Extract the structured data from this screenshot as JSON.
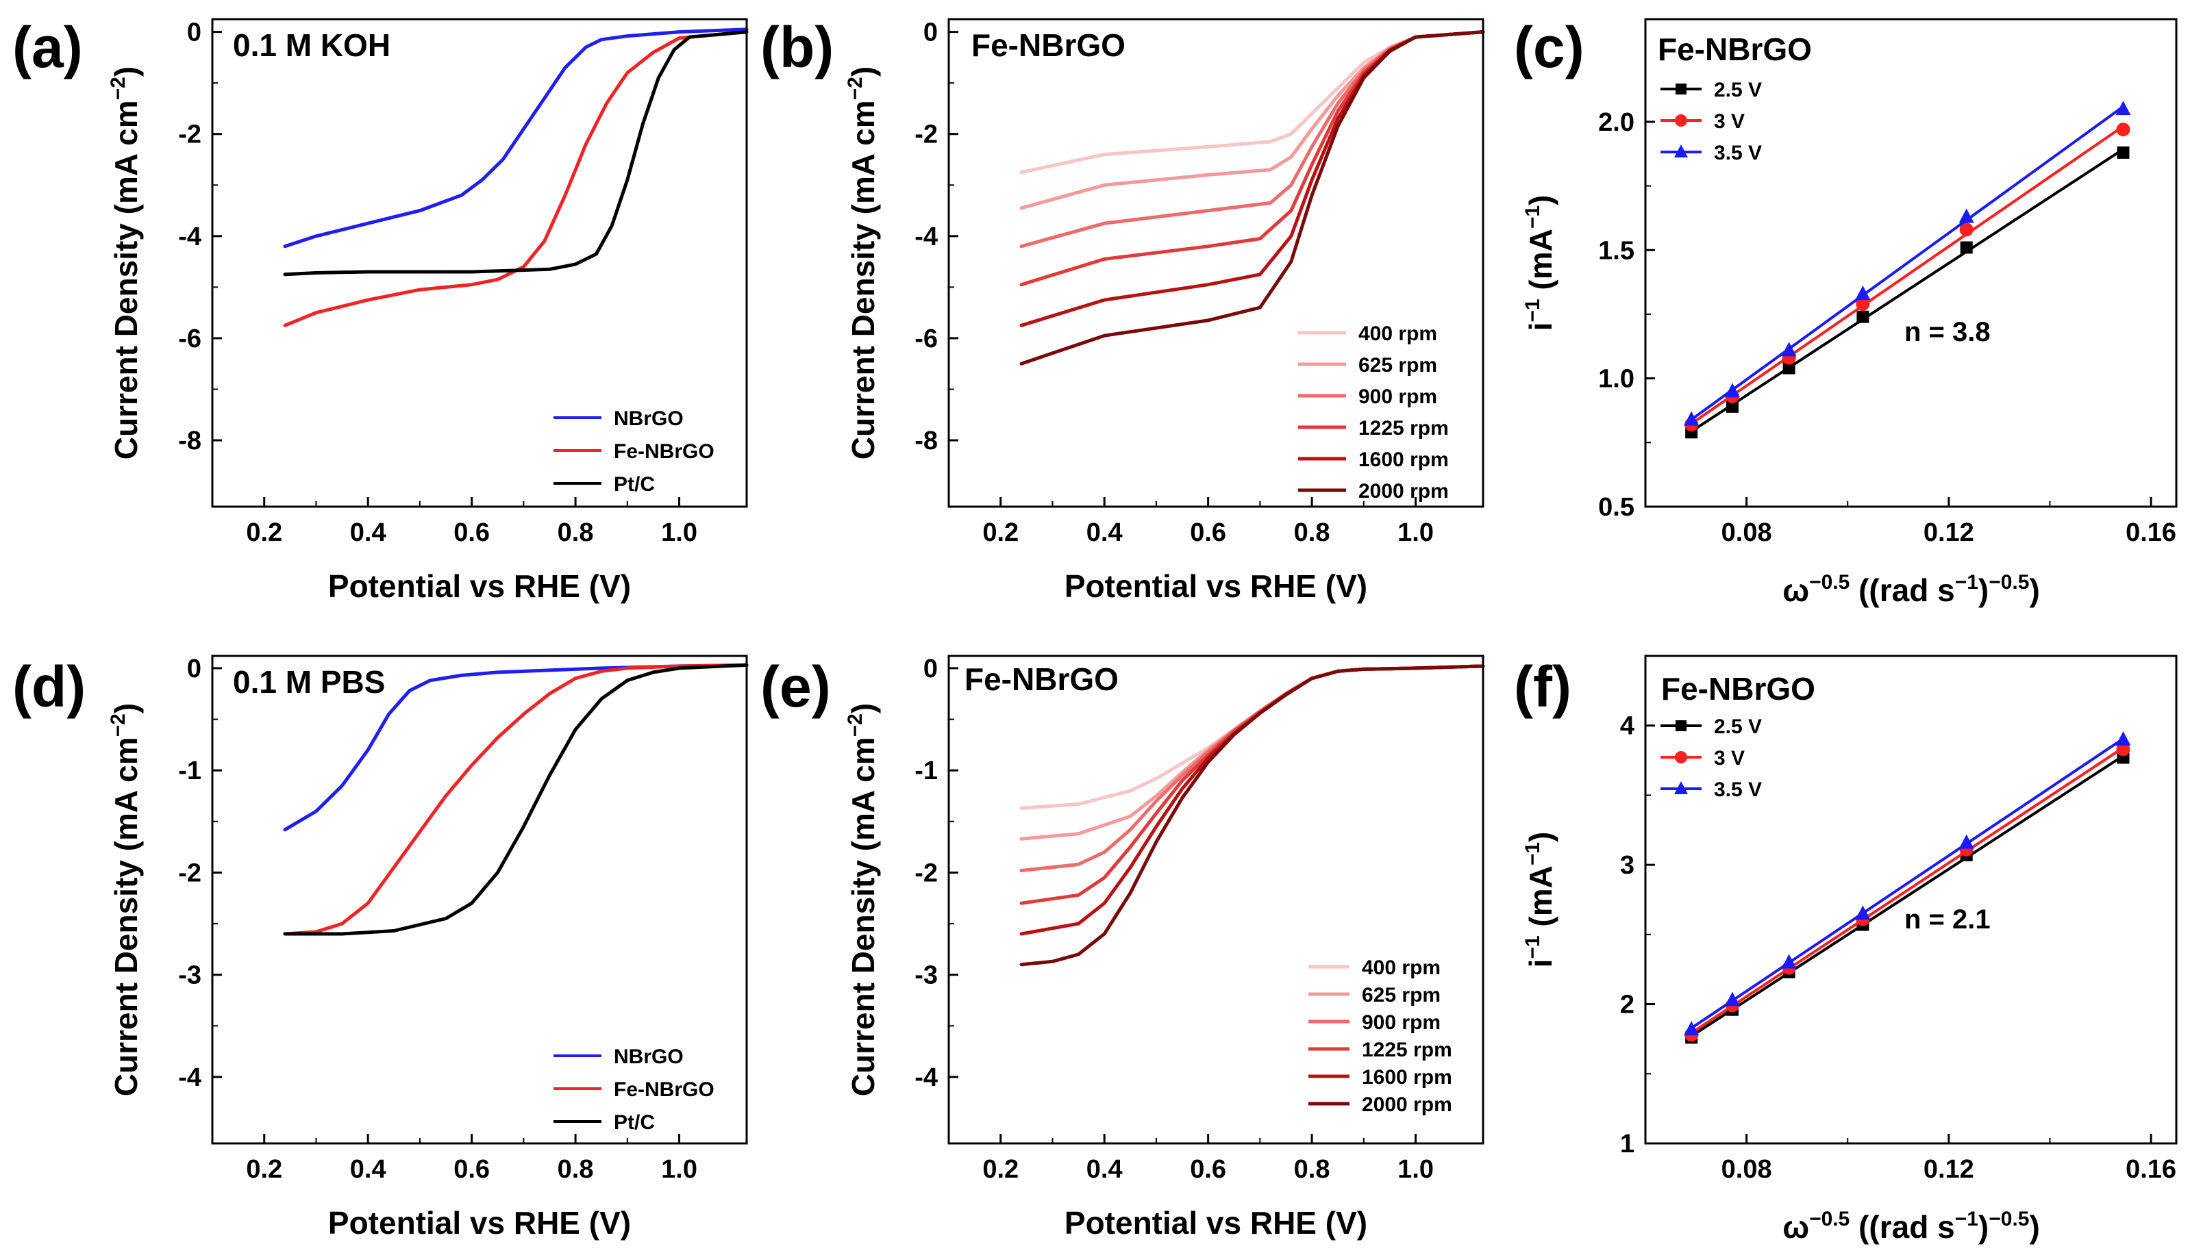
{
  "figure": {
    "panels": [
      {
        "label": "(a)",
        "title": "0.1 M KOH",
        "xlabel": "Potential vs RHE (V)",
        "ylabel": "Current Density (mA cm",
        "ylabel_sup": "−2",
        "ylabel_end": ")"
      },
      {
        "label": "(b)",
        "title": "Fe-NBrGO",
        "xlabel": "Potential vs RHE (V)",
        "ylabel": "Current Density (mA cm",
        "ylabel_sup": "−2",
        "ylabel_end": ")"
      },
      {
        "label": "(c)",
        "title": "Fe-NBrGO",
        "xlabel_pre": "ω",
        "xlabel_sup1": "−0.5",
        "xlabel_mid": " ((rad s",
        "xlabel_sup2": "−1",
        "xlabel_post": ")",
        "xlabel_sup3": "−0.5",
        "xlabel_end": ")",
        "ylabel": "i",
        "ylabel_sup": "−1",
        "ylabel_end": " (mA",
        "ylabel_sup2": "−1",
        "ylabel_end2": ")",
        "annotation": "n = 3.8"
      },
      {
        "label": "(d)",
        "title": "0.1 M PBS",
        "xlabel": "Potential vs RHE (V)",
        "ylabel": "Current Density (mA cm",
        "ylabel_sup": "−2",
        "ylabel_end": ")"
      },
      {
        "label": "(e)",
        "title": "Fe-NBrGO",
        "xlabel": "Potential vs RHE (V)",
        "ylabel": "Current Density (mA cm",
        "ylabel_sup": "−2",
        "ylabel_end": ")"
      },
      {
        "label": "(f)",
        "title": "Fe-NBrGO",
        "xlabel_pre": "ω",
        "xlabel_sup1": "−0.5",
        "xlabel_mid": " ((rad s",
        "xlabel_sup2": "−1",
        "xlabel_post": ")",
        "xlabel_sup3": "−0.5",
        "xlabel_end": ")",
        "ylabel": "i",
        "ylabel_sup": "−1",
        "ylabel_end": " (mA",
        "ylabel_sup2": "−1",
        "ylabel_end2": ")",
        "annotation": "n = 2.1"
      }
    ]
  },
  "chart_data": [
    {
      "panel": "a",
      "type": "line",
      "title": "0.1 M KOH",
      "xlabel": "Potential vs RHE (V)",
      "ylabel": "Current Density (mA cm−2)",
      "xlim": [
        0.1,
        1.13
      ],
      "ylim": [
        -9.3,
        0.25
      ],
      "xticks": [
        0.2,
        0.4,
        0.6,
        0.8,
        1.0
      ],
      "xtick_labels": [
        "0.2",
        "0.4",
        "0.6",
        "0.8",
        "1.0"
      ],
      "yticks": [
        0,
        -2,
        -4,
        -6,
        -8
      ],
      "ytick_labels": [
        "0",
        "-2",
        "-4",
        "-6",
        "-8"
      ],
      "legend_position": "bottom-right",
      "series": [
        {
          "name": "NBrGO",
          "color": "#1f1fef",
          "x": [
            0.24,
            0.3,
            0.4,
            0.5,
            0.58,
            0.62,
            0.66,
            0.7,
            0.74,
            0.78,
            0.82,
            0.85,
            0.9,
            1.0,
            1.13
          ],
          "y": [
            -4.2,
            -4.0,
            -3.75,
            -3.5,
            -3.2,
            -2.9,
            -2.5,
            -1.9,
            -1.3,
            -0.7,
            -0.3,
            -0.15,
            -0.08,
            0.0,
            0.05
          ]
        },
        {
          "name": "Fe-NBrGO",
          "color": "#ef2525",
          "x": [
            0.24,
            0.3,
            0.4,
            0.5,
            0.6,
            0.65,
            0.7,
            0.74,
            0.78,
            0.82,
            0.86,
            0.9,
            0.95,
            1.0,
            1.13
          ],
          "y": [
            -5.75,
            -5.5,
            -5.25,
            -5.05,
            -4.95,
            -4.85,
            -4.6,
            -4.1,
            -3.2,
            -2.2,
            -1.4,
            -0.8,
            -0.4,
            -0.12,
            0.0
          ]
        },
        {
          "name": "Pt/C",
          "color": "#000000",
          "x": [
            0.24,
            0.3,
            0.4,
            0.6,
            0.75,
            0.8,
            0.84,
            0.87,
            0.9,
            0.93,
            0.96,
            0.99,
            1.02,
            1.13
          ],
          "y": [
            -4.75,
            -4.72,
            -4.7,
            -4.7,
            -4.65,
            -4.55,
            -4.35,
            -3.8,
            -2.9,
            -1.8,
            -0.9,
            -0.35,
            -0.1,
            0.0
          ]
        }
      ]
    },
    {
      "panel": "b",
      "type": "line",
      "title": "Fe-NBrGO",
      "xlabel": "Potential vs RHE (V)",
      "ylabel": "Current Density (mA cm−2)",
      "xlim": [
        0.1,
        1.13
      ],
      "ylim": [
        -9.3,
        0.25
      ],
      "xticks": [
        0.2,
        0.4,
        0.6,
        0.8,
        1.0
      ],
      "xtick_labels": [
        "0.2",
        "0.4",
        "0.6",
        "0.8",
        "1.0"
      ],
      "yticks": [
        0,
        -2,
        -4,
        -6,
        -8
      ],
      "ytick_labels": [
        "0",
        "-2",
        "-4",
        "-6",
        "-8"
      ],
      "legend_position": "bottom-right",
      "series": [
        {
          "name": "400 rpm",
          "color": "#f7c5c5",
          "x": [
            0.24,
            0.4,
            0.6,
            0.72,
            0.76,
            0.8,
            0.85,
            0.9,
            0.95,
            1.0,
            1.13
          ],
          "y": [
            -2.75,
            -2.4,
            -2.25,
            -2.15,
            -2.0,
            -1.6,
            -1.1,
            -0.6,
            -0.3,
            -0.1,
            0.0
          ]
        },
        {
          "name": "625 rpm",
          "color": "#f39a9a",
          "x": [
            0.24,
            0.4,
            0.6,
            0.72,
            0.76,
            0.8,
            0.85,
            0.9,
            0.95,
            1.0,
            1.13
          ],
          "y": [
            -3.45,
            -3.0,
            -2.8,
            -2.7,
            -2.45,
            -1.9,
            -1.25,
            -0.7,
            -0.32,
            -0.1,
            0.0
          ]
        },
        {
          "name": "900 rpm",
          "color": "#ec6c6c",
          "x": [
            0.24,
            0.4,
            0.6,
            0.72,
            0.76,
            0.8,
            0.85,
            0.9,
            0.95,
            1.0,
            1.13
          ],
          "y": [
            -4.2,
            -3.75,
            -3.5,
            -3.35,
            -3.0,
            -2.25,
            -1.4,
            -0.75,
            -0.33,
            -0.1,
            0.0
          ]
        },
        {
          "name": "1225 rpm",
          "color": "#e03a3a",
          "x": [
            0.24,
            0.4,
            0.6,
            0.7,
            0.76,
            0.8,
            0.85,
            0.9,
            0.95,
            1.0,
            1.13
          ],
          "y": [
            -4.95,
            -4.45,
            -4.2,
            -4.05,
            -3.5,
            -2.6,
            -1.55,
            -0.8,
            -0.35,
            -0.1,
            0.0
          ]
        },
        {
          "name": "1600 rpm",
          "color": "#b81212",
          "x": [
            0.24,
            0.4,
            0.6,
            0.7,
            0.76,
            0.8,
            0.85,
            0.9,
            0.95,
            1.0,
            1.13
          ],
          "y": [
            -5.75,
            -5.25,
            -4.95,
            -4.75,
            -4.0,
            -2.9,
            -1.7,
            -0.85,
            -0.36,
            -0.1,
            0.0
          ]
        },
        {
          "name": "2000 rpm",
          "color": "#7a0a0a",
          "x": [
            0.24,
            0.4,
            0.6,
            0.7,
            0.76,
            0.8,
            0.85,
            0.9,
            0.95,
            1.0,
            1.13
          ],
          "y": [
            -6.5,
            -5.95,
            -5.65,
            -5.4,
            -4.5,
            -3.2,
            -1.85,
            -0.9,
            -0.38,
            -0.1,
            0.0
          ]
        }
      ]
    },
    {
      "panel": "c",
      "type": "scatter",
      "title": "Fe-NBrGO",
      "xlabel": "ω−0.5 ((rad s−1)−0.5)",
      "ylabel": "i−1 (mA−1)",
      "xlim": [
        0.06,
        0.165
      ],
      "ylim": [
        0.5,
        2.4
      ],
      "xticks": [
        0.08,
        0.12,
        0.16
      ],
      "xtick_labels": [
        "0.08",
        "0.12",
        "0.16"
      ],
      "yticks": [
        0.5,
        1.0,
        1.5,
        2.0
      ],
      "ytick_labels": [
        "0.5",
        "1.0",
        "1.5",
        "2.0"
      ],
      "legend_position": "top-left",
      "annotation": "n = 3.8",
      "x": [
        0.0691,
        0.0772,
        0.0884,
        0.103,
        0.1235,
        0.1545
      ],
      "series": [
        {
          "name": "2.5 V",
          "color": "#000000",
          "marker": "square",
          "values": [
            0.79,
            0.89,
            1.04,
            1.24,
            1.51,
            1.88
          ]
        },
        {
          "name": "3 V",
          "color": "#ff2020",
          "marker": "circle",
          "values": [
            0.82,
            0.93,
            1.08,
            1.29,
            1.58,
            1.97
          ]
        },
        {
          "name": "3.5 V",
          "color": "#1a1aff",
          "marker": "triangle",
          "values": [
            0.84,
            0.95,
            1.11,
            1.33,
            1.63,
            2.05
          ]
        }
      ]
    },
    {
      "panel": "d",
      "type": "line",
      "title": "0.1 M PBS",
      "xlabel": "Potential vs RHE (V)",
      "ylabel": "Current Density (mA cm−2)",
      "xlim": [
        0.1,
        1.13
      ],
      "ylim": [
        -4.65,
        0.12
      ],
      "xticks": [
        0.2,
        0.4,
        0.6,
        0.8,
        1.0
      ],
      "xtick_labels": [
        "0.2",
        "0.4",
        "0.6",
        "0.8",
        "1.0"
      ],
      "yticks": [
        0,
        -1,
        -2,
        -3,
        -4
      ],
      "ytick_labels": [
        "0",
        "-1",
        "-2",
        "-3",
        "-4"
      ],
      "legend_position": "bottom-right",
      "series": [
        {
          "name": "NBrGO",
          "color": "#1f1fef",
          "x": [
            0.24,
            0.3,
            0.35,
            0.4,
            0.44,
            0.48,
            0.52,
            0.58,
            0.65,
            0.75,
            0.85,
            1.0,
            1.13
          ],
          "y": [
            -1.58,
            -1.4,
            -1.15,
            -0.8,
            -0.45,
            -0.22,
            -0.12,
            -0.07,
            -0.04,
            -0.02,
            0.0,
            0.02,
            0.03
          ]
        },
        {
          "name": "Fe-NBrGO",
          "color": "#ef2525",
          "x": [
            0.24,
            0.3,
            0.35,
            0.4,
            0.45,
            0.5,
            0.55,
            0.6,
            0.65,
            0.7,
            0.75,
            0.8,
            0.85,
            0.9,
            1.0,
            1.13
          ],
          "y": [
            -2.6,
            -2.58,
            -2.5,
            -2.3,
            -1.95,
            -1.6,
            -1.25,
            -0.95,
            -0.68,
            -0.45,
            -0.25,
            -0.1,
            -0.03,
            0.0,
            0.02,
            0.03
          ]
        },
        {
          "name": "Pt/C",
          "color": "#000000",
          "x": [
            0.24,
            0.35,
            0.45,
            0.55,
            0.6,
            0.65,
            0.7,
            0.75,
            0.8,
            0.85,
            0.9,
            0.95,
            1.0,
            1.13
          ],
          "y": [
            -2.6,
            -2.6,
            -2.57,
            -2.45,
            -2.3,
            -2.0,
            -1.55,
            -1.05,
            -0.6,
            -0.3,
            -0.12,
            -0.04,
            0.0,
            0.03
          ]
        }
      ]
    },
    {
      "panel": "e",
      "type": "line",
      "title": "Fe-NBrGO",
      "xlabel": "Potential vs RHE (V)",
      "ylabel": "Current Density (mA cm−2)",
      "xlim": [
        0.1,
        1.13
      ],
      "ylim": [
        -4.65,
        0.12
      ],
      "xticks": [
        0.2,
        0.4,
        0.6,
        0.8,
        1.0
      ],
      "xtick_labels": [
        "0.2",
        "0.4",
        "0.6",
        "0.8",
        "1.0"
      ],
      "yticks": [
        0,
        -1,
        -2,
        -3,
        -4
      ],
      "ytick_labels": [
        "0",
        "-1",
        "-2",
        "-3",
        "-4"
      ],
      "legend_position": "bottom-right",
      "series": [
        {
          "name": "400 rpm",
          "color": "#f7c5c5",
          "x": [
            0.24,
            0.35,
            0.45,
            0.5,
            0.55,
            0.6,
            0.65,
            0.7,
            0.75,
            0.8,
            0.85,
            0.9,
            1.0,
            1.13
          ],
          "y": [
            -1.37,
            -1.33,
            -1.2,
            -1.08,
            -0.93,
            -0.78,
            -0.6,
            -0.42,
            -0.25,
            -0.1,
            -0.03,
            -0.01,
            0.0,
            0.02
          ]
        },
        {
          "name": "625 rpm",
          "color": "#f39a9a",
          "x": [
            0.24,
            0.35,
            0.45,
            0.5,
            0.55,
            0.6,
            0.65,
            0.7,
            0.75,
            0.8,
            0.85,
            0.9,
            1.0,
            1.13
          ],
          "y": [
            -1.67,
            -1.62,
            -1.45,
            -1.25,
            -1.02,
            -0.8,
            -0.6,
            -0.42,
            -0.25,
            -0.1,
            -0.03,
            -0.01,
            0.0,
            0.02
          ]
        },
        {
          "name": "900 rpm",
          "color": "#ec6c6c",
          "x": [
            0.24,
            0.35,
            0.4,
            0.45,
            0.5,
            0.55,
            0.6,
            0.65,
            0.7,
            0.75,
            0.8,
            0.85,
            0.9,
            1.0,
            1.13
          ],
          "y": [
            -1.98,
            -1.92,
            -1.8,
            -1.58,
            -1.3,
            -1.05,
            -0.82,
            -0.61,
            -0.42,
            -0.25,
            -0.1,
            -0.03,
            -0.01,
            0.0,
            0.02
          ]
        },
        {
          "name": "1225 rpm",
          "color": "#e03a3a",
          "x": [
            0.24,
            0.35,
            0.4,
            0.45,
            0.5,
            0.55,
            0.6,
            0.65,
            0.7,
            0.75,
            0.8,
            0.85,
            0.9,
            1.0,
            1.13
          ],
          "y": [
            -2.3,
            -2.22,
            -2.05,
            -1.75,
            -1.42,
            -1.1,
            -0.85,
            -0.62,
            -0.43,
            -0.25,
            -0.1,
            -0.03,
            -0.01,
            0.0,
            0.02
          ]
        },
        {
          "name": "1600 rpm",
          "color": "#b81212",
          "x": [
            0.24,
            0.35,
            0.4,
            0.45,
            0.5,
            0.55,
            0.6,
            0.65,
            0.7,
            0.75,
            0.8,
            0.85,
            0.9,
            1.0,
            1.13
          ],
          "y": [
            -2.6,
            -2.5,
            -2.3,
            -1.95,
            -1.55,
            -1.18,
            -0.88,
            -0.64,
            -0.44,
            -0.26,
            -0.1,
            -0.03,
            -0.01,
            0.0,
            0.02
          ]
        },
        {
          "name": "2000 rpm",
          "color": "#7a0a0a",
          "x": [
            0.24,
            0.3,
            0.35,
            0.4,
            0.45,
            0.5,
            0.55,
            0.6,
            0.65,
            0.7,
            0.75,
            0.8,
            0.85,
            0.9,
            1.0,
            1.13
          ],
          "y": [
            -2.9,
            -2.87,
            -2.8,
            -2.6,
            -2.2,
            -1.7,
            -1.27,
            -0.92,
            -0.65,
            -0.44,
            -0.26,
            -0.1,
            -0.03,
            -0.01,
            0.0,
            0.02
          ]
        }
      ]
    },
    {
      "panel": "f",
      "type": "scatter",
      "title": "Fe-NBrGO",
      "xlabel": "ω−0.5 ((rad s−1)−0.5)",
      "ylabel": "i−1 (mA−1)",
      "xlim": [
        0.06,
        0.165
      ],
      "ylim": [
        1.0,
        4.5
      ],
      "xticks": [
        0.08,
        0.12,
        0.16
      ],
      "xtick_labels": [
        "0.08",
        "0.12",
        "0.16"
      ],
      "yticks": [
        1,
        2,
        3,
        4
      ],
      "ytick_labels": [
        "1",
        "2",
        "3",
        "4"
      ],
      "legend_position": "top-left",
      "annotation": "n = 2.1",
      "x": [
        0.0691,
        0.0772,
        0.0884,
        0.103,
        0.1235,
        0.1545
      ],
      "series": [
        {
          "name": "2.5 V",
          "color": "#000000",
          "marker": "square",
          "values": [
            1.76,
            1.96,
            2.23,
            2.57,
            3.07,
            3.77
          ]
        },
        {
          "name": "3 V",
          "color": "#ff2020",
          "marker": "circle",
          "values": [
            1.78,
            1.99,
            2.26,
            2.61,
            3.11,
            3.83
          ]
        },
        {
          "name": "3.5 V",
          "color": "#1a1aff",
          "marker": "triangle",
          "values": [
            1.82,
            2.03,
            2.3,
            2.65,
            3.16,
            3.9
          ]
        }
      ]
    }
  ]
}
